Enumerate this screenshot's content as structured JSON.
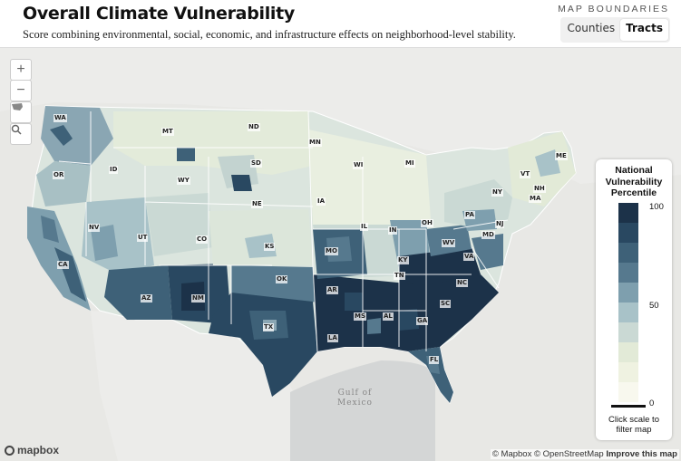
{
  "header": {
    "title": "Overall Climate Vulnerability",
    "subtitle": "Score combining environmental, social, economic, and infrastructure effects on neighborhood-level stability.",
    "boundaries_label": "MAP BOUNDARIES",
    "boundary_options": [
      "Counties",
      "Tracts"
    ],
    "selected_boundary": "Tracts"
  },
  "map_controls": {
    "zoom_in_icon": "plus-icon",
    "zoom_out_icon": "minus-icon",
    "reset_icon": "usa-map-icon",
    "search_icon": "search-icon"
  },
  "state_labels": [
    "WA",
    "MT",
    "ND",
    "MN",
    "ME",
    "OR",
    "ID",
    "SD",
    "WI",
    "MI",
    "VT",
    "NH",
    "WY",
    "NY",
    "MA",
    "NE",
    "IA",
    "PA",
    "NV",
    "UT",
    "CO",
    "IL",
    "IN",
    "OH",
    "NJ",
    "MD",
    "CA",
    "KS",
    "MO",
    "WV",
    "KY",
    "VA",
    "AZ",
    "OK",
    "TN",
    "NC",
    "NM",
    "AR",
    "SC",
    "MS",
    "AL",
    "GA",
    "TX",
    "LA",
    "FL"
  ],
  "water_label": [
    "Gulf of",
    "Mexico"
  ],
  "legend": {
    "title_lines": [
      "National",
      "Vulnerability",
      "Percentile"
    ],
    "colors": [
      "#1c3249",
      "#294861",
      "#3e6178",
      "#56798e",
      "#7e9fae",
      "#a8c2c8",
      "#cad9d4",
      "#e2ead7",
      "#eff2e1",
      "#f8f8ee"
    ],
    "tick_top": "100",
    "tick_mid": "50",
    "tick_bottom": "0",
    "note_lines": [
      "Click scale to",
      "filter map"
    ]
  },
  "attribution": {
    "logo_text": "mapbox",
    "mapbox": "© Mapbox",
    "osm": "© OpenStreetMap",
    "improve": "Improve this map"
  }
}
